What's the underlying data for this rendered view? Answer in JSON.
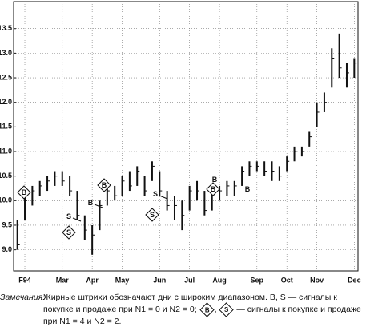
{
  "chart_data": {
    "type": "hlc",
    "categories": [
      null,
      "F94",
      null,
      null,
      null,
      null,
      "Mar",
      null,
      null,
      null,
      "Apr",
      null,
      null,
      null,
      "May",
      null,
      null,
      null,
      null,
      "Jun",
      null,
      null,
      null,
      "Jul",
      null,
      null,
      null,
      "Aug",
      null,
      null,
      null,
      null,
      "Sep",
      null,
      null,
      null,
      "Oct",
      null,
      null,
      null,
      "Nov",
      null,
      null,
      null,
      null,
      "Dec"
    ],
    "high": [
      9.6,
      10.2,
      10.3,
      10.4,
      10.5,
      10.6,
      10.6,
      10.5,
      10.2,
      9.7,
      9.5,
      10.0,
      10.3,
      10.3,
      10.5,
      10.6,
      10.7,
      10.5,
      10.8,
      10.6,
      10.2,
      10.1,
      10.0,
      10.3,
      10.4,
      10.2,
      10.2,
      10.3,
      10.4,
      10.4,
      10.7,
      10.8,
      10.8,
      10.8,
      10.8,
      10.7,
      10.9,
      11.1,
      11.1,
      11.4,
      12.0,
      12.2,
      13.1,
      13.4,
      12.8,
      12.9
    ],
    "low": [
      9.0,
      9.6,
      9.9,
      10.1,
      10.2,
      10.3,
      10.3,
      10.1,
      9.6,
      9.2,
      8.9,
      9.4,
      9.9,
      10.0,
      10.1,
      10.2,
      10.3,
      10.1,
      10.4,
      10.1,
      9.8,
      9.6,
      9.4,
      9.8,
      10.0,
      9.7,
      9.8,
      10.0,
      10.1,
      10.1,
      10.3,
      10.5,
      10.6,
      10.5,
      10.4,
      10.4,
      10.6,
      10.8,
      10.9,
      11.1,
      11.5,
      11.8,
      12.3,
      12.5,
      12.3,
      12.5
    ],
    "close": [
      9.1,
      10.0,
      10.2,
      10.3,
      10.4,
      10.5,
      10.4,
      10.2,
      9.7,
      9.4,
      9.3,
      9.9,
      10.2,
      10.1,
      10.4,
      10.3,
      10.6,
      10.2,
      10.7,
      10.2,
      9.9,
      9.9,
      9.7,
      10.2,
      10.2,
      9.8,
      10.1,
      10.2,
      10.3,
      10.3,
      10.6,
      10.7,
      10.7,
      10.6,
      10.6,
      10.5,
      10.8,
      11.0,
      11.0,
      11.3,
      11.8,
      12.0,
      12.9,
      12.7,
      12.6,
      12.8
    ],
    "color": "#111111",
    "ylim": [
      8.57,
      14.05
    ],
    "yticks": [
      {
        "value": 9,
        "label": "9.0"
      },
      9.5,
      {
        "value": 10,
        "label": "10.0"
      },
      10.5,
      {
        "value": 11,
        "label": "11.0"
      },
      11.5,
      {
        "value": 12,
        "label": "12.0"
      },
      12.5,
      {
        "value": 13,
        "label": "13.0"
      },
      13.5
    ],
    "grid": true,
    "annotations": [
      "B",
      "S",
      "B",
      "S",
      "B",
      "S",
      "B",
      "S",
      "B",
      "B"
    ]
  },
  "note": {
    "label": "Замечания:",
    "text1": "Жирные штрихи обозначают дни с широким диапазоном. B, S — сигналы к покупке и продаже при N1 = 0 и N2 = 0;",
    "sym1": "B",
    "sep": ",",
    "sym2": "S",
    "text2": "— сигналы к покупке и продаже при N1 = 4 и N2 = 2."
  }
}
